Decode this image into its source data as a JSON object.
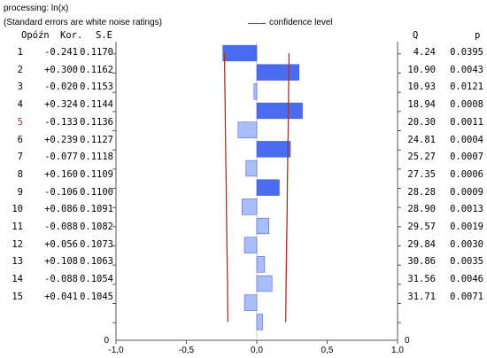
{
  "header": {
    "line1": "processing: ln(x)",
    "line2": "(Standard errors are white noise ratings)",
    "legend_label": "confidence level"
  },
  "columns": {
    "lag": "Opóźn",
    "corr": "Kor.",
    "se": "S.E",
    "q": "Q",
    "p": "p"
  },
  "rows": [
    {
      "lag": "1",
      "corr": "-0.241",
      "se": "0.1170",
      "q": "4.24",
      "p": "0.0395"
    },
    {
      "lag": "2",
      "corr": "+0.300",
      "se": "0.1162",
      "q": "10.90",
      "p": "0.0043"
    },
    {
      "lag": "3",
      "corr": "-0.020",
      "se": "0.1153",
      "q": "10.93",
      "p": "0.0121"
    },
    {
      "lag": "4",
      "corr": "+0.324",
      "se": "0.1144",
      "q": "18.94",
      "p": "0.0008"
    },
    {
      "lag": "5",
      "corr": "-0.133",
      "se": "0.1136",
      "q": "20.30",
      "p": "0.0011"
    },
    {
      "lag": "6",
      "corr": "+0.239",
      "se": "0.1127",
      "q": "24.81",
      "p": "0.0004"
    },
    {
      "lag": "7",
      "corr": "-0.077",
      "se": "0.1118",
      "q": "25.27",
      "p": "0.0007"
    },
    {
      "lag": "8",
      "corr": "+0.160",
      "se": "0.1109",
      "q": "27.35",
      "p": "0.0006"
    },
    {
      "lag": "9",
      "corr": "-0.106",
      "se": "0.1100",
      "q": "28.28",
      "p": "0.0009"
    },
    {
      "lag": "10",
      "corr": "+0.086",
      "se": "0.1091",
      "q": "28.90",
      "p": "0.0013"
    },
    {
      "lag": "11",
      "corr": "-0.088",
      "se": "0.1082",
      "q": "29.57",
      "p": "0.0019"
    },
    {
      "lag": "12",
      "corr": "+0.056",
      "se": "0.1073",
      "q": "29.84",
      "p": "0.0030"
    },
    {
      "lag": "13",
      "corr": "+0.108",
      "se": "0.1063",
      "q": "30.86",
      "p": "0.0035"
    },
    {
      "lag": "14",
      "corr": "-0.088",
      "se": "0.1054",
      "q": "31.56",
      "p": "0.0046"
    },
    {
      "lag": "15",
      "corr": "+0.041",
      "se": "0.1045",
      "q": "31.71",
      "p": "0.0071"
    }
  ],
  "chart_data": {
    "type": "bar",
    "orientation": "horizontal",
    "categories": [
      "1",
      "2",
      "3",
      "4",
      "5",
      "6",
      "7",
      "8",
      "9",
      "10",
      "11",
      "12",
      "13",
      "14",
      "15"
    ],
    "values": [
      -0.241,
      0.3,
      -0.02,
      0.324,
      -0.133,
      0.239,
      -0.077,
      0.16,
      -0.106,
      0.086,
      -0.088,
      0.056,
      0.108,
      -0.088,
      0.041
    ],
    "confidence_level": {
      "name": "confidence level",
      "lower": [
        -0.229,
        -0.228,
        -0.226,
        -0.224,
        -0.223,
        -0.221,
        -0.219,
        -0.217,
        -0.216,
        -0.214,
        -0.212,
        -0.21,
        -0.208,
        -0.207,
        -0.205
      ],
      "upper": [
        0.229,
        0.228,
        0.226,
        0.224,
        0.223,
        0.221,
        0.219,
        0.217,
        0.216,
        0.214,
        0.212,
        0.21,
        0.208,
        0.207,
        0.205
      ]
    },
    "xlim": [
      -1.0,
      1.0
    ],
    "xticks": [
      "-1,0",
      "-0,5",
      "0,0",
      "0,5",
      "1,0"
    ],
    "xtick_values": [
      -1.0,
      -0.5,
      0.0,
      0.5,
      1.0
    ],
    "left_axis_zero_label": "0",
    "right_axis_zero_label": "0",
    "colors": {
      "bar": "#4a6cf0",
      "bar_light": "#a9bdfa",
      "confidence": "#a0352a",
      "axis": "#555555"
    },
    "grid": false,
    "legend": "top-center"
  }
}
